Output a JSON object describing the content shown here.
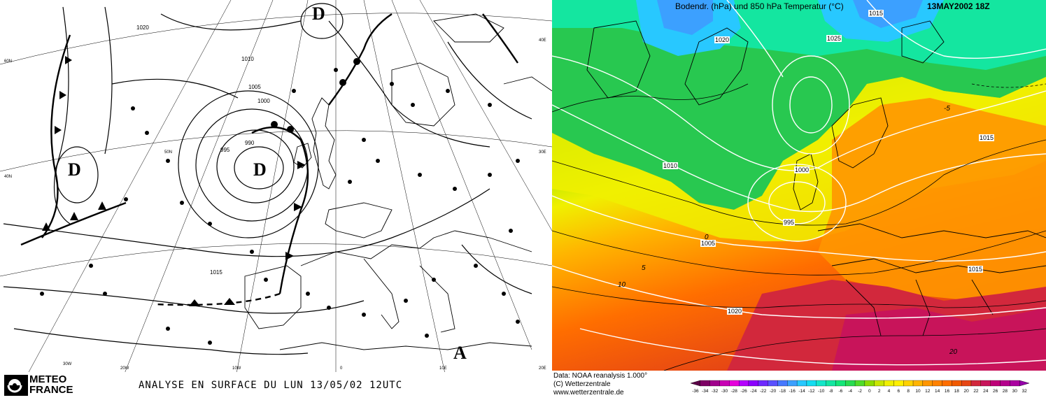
{
  "left_panel": {
    "logo_line1": "METEO",
    "logo_line2": "FRANCE",
    "caption": "ANALYSE EN SURFACE DU LUN   13/05/02   12UTC",
    "pressure_centers": [
      {
        "letter": "D",
        "kind": "low"
      },
      {
        "letter": "D",
        "kind": "low"
      },
      {
        "letter": "D",
        "kind": "low"
      },
      {
        "letter": "A",
        "kind": "high"
      }
    ],
    "isobar_labels": [
      "1000",
      "1005",
      "1010",
      "1015",
      "1020",
      "990",
      "995"
    ],
    "grid_labels": [
      "30W",
      "20W",
      "10W",
      "0",
      "10E",
      "20E",
      "30E",
      "40E",
      "40N",
      "50N",
      "60N"
    ]
  },
  "right_panel": {
    "title_left": "Bodendr. (hPa) und 850 hPa Temperatur (°C)",
    "title_right": "13MAY2002 18Z",
    "credit_line1": "Data: NOAA reanalysis 1.000°",
    "credit_line2": "(C) Wetterzentrale",
    "credit_line3": "www.wetterzentrale.de",
    "isobar_labels": [
      "1015",
      "1020",
      "1025",
      "995",
      "1005",
      "1010",
      "1000"
    ],
    "isotherm_labels": [
      "0",
      "5",
      "10",
      "-5",
      "20"
    ],
    "colorbar_labels": [
      "-36",
      "-34",
      "-32",
      "-30",
      "-28",
      "-26",
      "-24",
      "-22",
      "-20",
      "-18",
      "-16",
      "-14",
      "-12",
      "-10",
      "-8",
      "-6",
      "-4",
      "-2",
      "0",
      "2",
      "4",
      "6",
      "8",
      "10",
      "12",
      "14",
      "16",
      "18",
      "20",
      "22",
      "24",
      "26",
      "28",
      "30",
      "32"
    ],
    "colorbar_colors": [
      "#5a0046",
      "#7d0064",
      "#a0008c",
      "#c800b4",
      "#e600dc",
      "#b400ff",
      "#8c00ff",
      "#6e28ff",
      "#5a50ff",
      "#4678ff",
      "#3ca0ff",
      "#28c8ff",
      "#14dcf0",
      "#14e6c8",
      "#14e6a0",
      "#14e678",
      "#28dc50",
      "#50dc28",
      "#8cdc00",
      "#c8e600",
      "#f0f000",
      "#fff000",
      "#ffd200",
      "#ffb400",
      "#ff9600",
      "#ff8200",
      "#ff6e00",
      "#f05a00",
      "#e64614",
      "#d2283c",
      "#c8145a",
      "#be0078",
      "#b4008c",
      "#aa00a0",
      "#9600aa"
    ]
  }
}
